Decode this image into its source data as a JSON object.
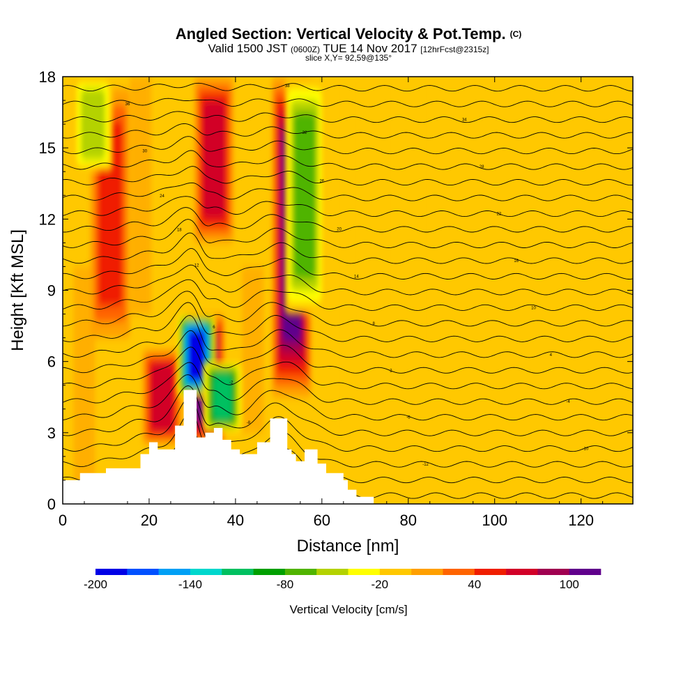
{
  "header": {
    "title": "Angled Section: Vertical Velocity & Pot.Temp.",
    "title_unit": "(C)",
    "subtitle_a": "Valid 1500 JST",
    "subtitle_b": "(0600Z)",
    "subtitle_c": "TUE 14 Nov 2017",
    "subtitle_d": "[12hrFcst@2315z]",
    "slice": "slice X,Y= 92,59@135°"
  },
  "chart_data": {
    "type": "heatmap",
    "title": "Angled Section: Vertical Velocity & Pot.Temp.",
    "xlabel": "Distance [nm]",
    "ylabel": "Height [Kft MSL]",
    "xlim": [
      0,
      132
    ],
    "ylim": [
      0,
      18
    ],
    "xticks": [
      0,
      20,
      40,
      60,
      80,
      100,
      120
    ],
    "yticks": [
      0,
      3,
      6,
      9,
      12,
      15,
      18
    ],
    "colorbar": {
      "label": "Vertical Velocity [cm/s]",
      "tick_labels": [
        "-200",
        "-140",
        "-80",
        "-20",
        "40",
        "100"
      ],
      "tick_values": [
        -200,
        -140,
        -80,
        -20,
        40,
        100
      ],
      "levels": [
        -200,
        -180,
        -160,
        -140,
        -120,
        -100,
        -80,
        -60,
        -40,
        -20,
        0,
        20,
        40,
        60,
        80,
        100,
        120
      ],
      "colors": [
        "#0000e6",
        "#0050ff",
        "#00a0f5",
        "#00d7cd",
        "#00c060",
        "#00a000",
        "#50b400",
        "#b4d200",
        "#ffff00",
        "#ffc800",
        "#ffa000",
        "#ff6400",
        "#f01e00",
        "#d20028",
        "#a00050",
        "#60008c"
      ]
    },
    "terrain": [
      [
        0,
        1.0
      ],
      [
        4,
        1.0
      ],
      [
        4,
        1.3
      ],
      [
        10,
        1.3
      ],
      [
        10,
        1.5
      ],
      [
        18,
        1.5
      ],
      [
        18,
        2.1
      ],
      [
        20,
        2.1
      ],
      [
        20,
        2.6
      ],
      [
        22,
        2.6
      ],
      [
        22,
        2.3
      ],
      [
        26,
        2.3
      ],
      [
        26,
        3.3
      ],
      [
        28,
        3.3
      ],
      [
        28,
        4.8
      ],
      [
        31,
        4.8
      ],
      [
        31,
        2.8
      ],
      [
        33,
        2.8
      ],
      [
        33,
        3.0
      ],
      [
        35,
        3.0
      ],
      [
        35,
        3.2
      ],
      [
        37,
        3.2
      ],
      [
        37,
        2.7
      ],
      [
        39,
        2.7
      ],
      [
        39,
        2.3
      ],
      [
        41,
        2.3
      ],
      [
        41,
        2.1
      ],
      [
        45,
        2.1
      ],
      [
        45,
        2.6
      ],
      [
        48,
        2.6
      ],
      [
        48,
        3.6
      ],
      [
        52,
        3.6
      ],
      [
        52,
        2.3
      ],
      [
        53,
        2.3
      ],
      [
        53,
        2.1
      ],
      [
        54,
        2.1
      ],
      [
        54,
        1.8
      ],
      [
        56,
        1.8
      ],
      [
        56,
        2.3
      ],
      [
        59,
        2.3
      ],
      [
        59,
        1.7
      ],
      [
        61,
        1.7
      ],
      [
        61,
        1.3
      ],
      [
        65,
        1.3
      ],
      [
        65,
        1.0
      ],
      [
        66,
        1.0
      ],
      [
        66,
        0.6
      ],
      [
        68,
        0.6
      ],
      [
        68,
        0.3
      ],
      [
        72,
        0.3
      ],
      [
        72,
        0.0
      ],
      [
        132,
        0.0
      ]
    ],
    "updraft_bands": [
      {
        "x": 53,
        "y0": 4.5,
        "y1": 18,
        "w": 140
      },
      {
        "x": 33,
        "y0": 2.5,
        "y1": 8,
        "w": 100
      },
      {
        "x": 11,
        "y0": 7,
        "y1": 17.5,
        "w": 50
      },
      {
        "x": 23,
        "y0": 2.5,
        "y1": 6.5,
        "w": 60
      },
      {
        "x": 35,
        "y0": 11,
        "y1": 18,
        "w": 60
      }
    ],
    "downdraft_bands": [
      {
        "x": 31,
        "y0": 4.5,
        "y1": 8,
        "w": -200
      },
      {
        "x": 37,
        "y0": 3,
        "y1": 6,
        "w": -100
      },
      {
        "x": 56,
        "y0": 8,
        "y1": 18,
        "w": -60
      },
      {
        "x": 7,
        "y0": 14,
        "y1": 18,
        "w": -50
      }
    ],
    "isentrope_labels": [
      "-15",
      "-14",
      "-12",
      "-10",
      "-8",
      "-6",
      "-4",
      "-2",
      "2",
      "4",
      "6",
      "8",
      "10",
      "12",
      "14",
      "16",
      "18",
      "20",
      "22",
      "24",
      "26",
      "28",
      "30",
      "32",
      "34",
      "36",
      "38",
      "40"
    ]
  }
}
